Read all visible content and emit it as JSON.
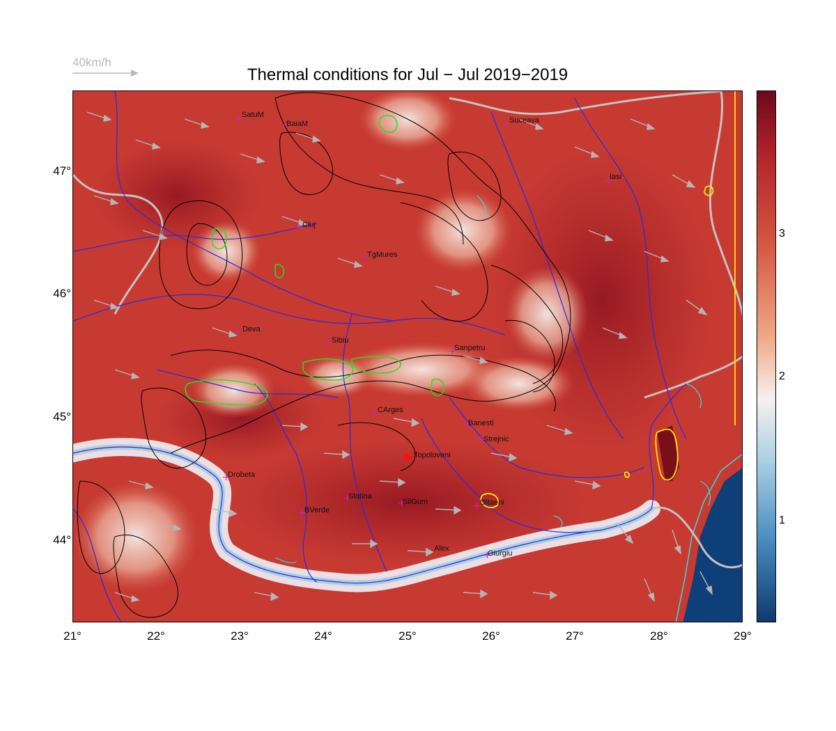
{
  "title": "Thermal conditions for Jul − Jul  2019−2019",
  "wind_legend": {
    "label": "40km/h",
    "color": "#b8b8b8"
  },
  "axes": {
    "x_ticks": [
      "21°",
      "22°",
      "23°",
      "24°",
      "25°",
      "26°",
      "27°",
      "28°",
      "29°"
    ],
    "y_ticks": [
      "47°",
      "46°",
      "45°",
      "44°"
    ],
    "lon_range": [
      21,
      29
    ],
    "lat_range": [
      43.3,
      47.7
    ]
  },
  "colorbar": {
    "ticks": [
      "3",
      "2",
      "1"
    ],
    "tick_values": [
      3,
      2,
      1
    ],
    "range": [
      0.3,
      3.9
    ],
    "colors": [
      "#6b0a1c",
      "#b2232b",
      "#d2543f",
      "#eea783",
      "#f7f0ee",
      "#a7cfe3",
      "#4c8fc2",
      "#0c3970"
    ]
  },
  "colors": {
    "map_base": "#c63a32",
    "hot": "#8e1420",
    "warm": "#d9604a",
    "cool": "#f2d7cc",
    "sea": "#0f3f78",
    "river": "#2a2ae0",
    "border": "#c4c4c4",
    "contour": "#000000",
    "high_contour": "#22e022",
    "yellow_contour": "#ffe600",
    "coast_contour": "#33dddd"
  },
  "cities": [
    {
      "name": "SatuM",
      "lon": 23.0,
      "lat": 47.43
    },
    {
      "name": "BaiaM",
      "lon": 23.6,
      "lat": 47.37
    },
    {
      "name": "Suceava",
      "lon": 26.18,
      "lat": 47.4
    },
    {
      "name": "Iasi",
      "lon": 27.4,
      "lat": 46.95
    },
    {
      "name": "Cluj",
      "lon": 23.7,
      "lat": 46.57
    },
    {
      "name": "TgMures",
      "lon": 24.4,
      "lat": 46.32
    },
    {
      "name": "Deva",
      "lon": 22.98,
      "lat": 45.7
    },
    {
      "name": "Sibiu",
      "lon": 24.05,
      "lat": 45.6
    },
    {
      "name": "Sanpetru",
      "lon": 25.53,
      "lat": 45.53
    },
    {
      "name": "CArges",
      "lon": 24.6,
      "lat": 45.05
    },
    {
      "name": "Banesti",
      "lon": 25.68,
      "lat": 44.93
    },
    {
      "name": "Strejnic",
      "lon": 25.87,
      "lat": 44.8
    },
    {
      "name": "Drobeta",
      "lon": 22.75,
      "lat": 44.52
    },
    {
      "name": "Slatina",
      "lon": 24.3,
      "lat": 44.34
    },
    {
      "name": "SilGum",
      "lon": 24.98,
      "lat": 44.3
    },
    {
      "name": "Oltaeni",
      "lon": 25.85,
      "lat": 44.28
    },
    {
      "name": "BVerde",
      "lon": 23.75,
      "lat": 44.22
    },
    {
      "name": "Alex",
      "lon": 25.28,
      "lat": 43.9
    },
    {
      "name": "Giurgiu",
      "lon": 25.93,
      "lat": 43.87
    }
  ],
  "highlight_city": {
    "name": "Topoloveni",
    "lon": 25.0,
    "lat": 44.69
  }
}
